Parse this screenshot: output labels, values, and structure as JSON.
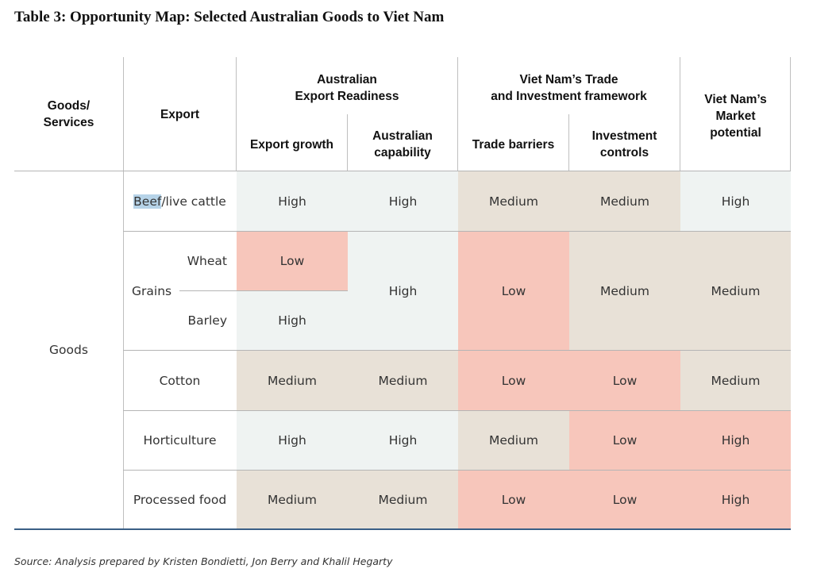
{
  "title": "Table 3: Opportunity Map: Selected Australian Goods to Viet Nam",
  "headers": {
    "goods_services": "Goods/\nServices",
    "export": "Export",
    "group_readiness": "Australian\nExport Readiness",
    "group_trade": "Viet Nam’s Trade\nand Investment framework",
    "market_potential": "Viet Nam’s\nMarket\npotential",
    "export_growth": "Export growth",
    "australian_capability": "Australian\ncapability",
    "trade_barriers": "Trade barriers",
    "investment_controls": "Investment\ncontrols"
  },
  "category": "Goods",
  "rows": {
    "beef": {
      "label_highlight": "Beef",
      "label_rest": "/live cattle",
      "export_growth": "High",
      "australian_capability": "High",
      "trade_barriers": "Medium",
      "investment_controls": "Medium",
      "market_potential": "High"
    },
    "grains": {
      "label": "Grains",
      "wheat_label": "Wheat",
      "barley_label": "Barley",
      "wheat_export_growth": "Low",
      "barley_export_growth": "High",
      "australian_capability": "High",
      "trade_barriers": "Low",
      "investment_controls": "Medium",
      "market_potential": "Medium"
    },
    "cotton": {
      "label": "Cotton",
      "export_growth": "Medium",
      "australian_capability": "Medium",
      "trade_barriers": "Low",
      "investment_controls": "Low",
      "market_potential": "Medium"
    },
    "horticulture": {
      "label": "Horticulture",
      "export_growth": "High",
      "australian_capability": "High",
      "trade_barriers": "Medium",
      "investment_controls": "Low",
      "market_potential": "High"
    },
    "processed_food": {
      "label": "Processed food",
      "export_growth": "Medium",
      "australian_capability": "Medium",
      "trade_barriers": "Low",
      "investment_controls": "Low",
      "market_potential": "High"
    }
  },
  "colors": {
    "high": "#eff3f2",
    "medium": "#e8e1d7",
    "low": "#f7c6bb",
    "rule": "#3a5f86"
  },
  "source": "Source: Analysis prepared by Kristen Bondietti, Jon Berry and Khalil Hegarty"
}
